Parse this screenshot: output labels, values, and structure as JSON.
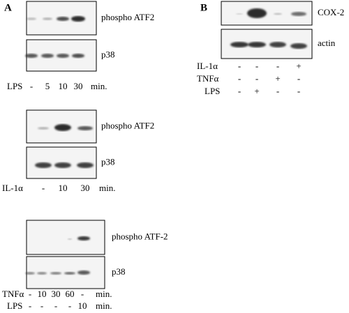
{
  "panel_a": {
    "label": "A",
    "experiments": [
      {
        "blots": [
          "phospho ATF2",
          "p38"
        ],
        "rows": [
          {
            "label": "LPS",
            "lanes": [
              "-",
              "5",
              "10",
              "30"
            ],
            "unit": "min."
          }
        ]
      },
      {
        "blots": [
          "phospho ATF2",
          "p38"
        ],
        "rows": [
          {
            "label": "IL-1α",
            "lanes": [
              "-",
              "10",
              "30"
            ],
            "unit": "min."
          }
        ]
      },
      {
        "blots": [
          "phospho ATF-2",
          "p38"
        ],
        "rows": [
          {
            "label": "TNFα",
            "lanes": [
              "-",
              "10",
              "30",
              "60",
              "-"
            ],
            "unit": "min."
          },
          {
            "label": "LPS",
            "lanes": [
              "-",
              "-",
              "-",
              "-",
              "10"
            ],
            "unit": "min."
          }
        ]
      }
    ]
  },
  "panel_b": {
    "label": "B",
    "blots": [
      "COX-2",
      "actin"
    ],
    "rows": [
      {
        "label": "IL-1α",
        "lanes": [
          "-",
          "-",
          "-",
          "+"
        ]
      },
      {
        "label": "TNFα",
        "lanes": [
          "-",
          "-",
          "+",
          "-"
        ]
      },
      {
        "label": "LPS",
        "lanes": [
          "-",
          "+",
          "-",
          "-"
        ]
      }
    ]
  }
}
